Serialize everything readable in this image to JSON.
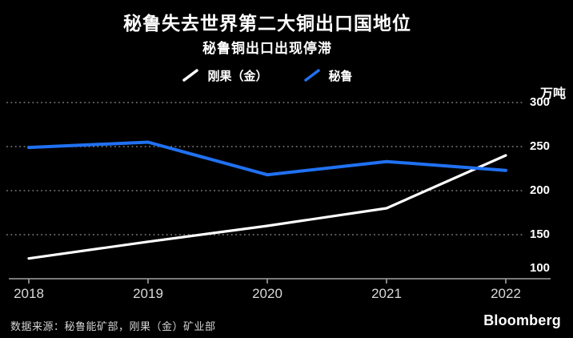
{
  "header": {
    "title": "秘鲁失去世界第二大铜出口国地位",
    "subtitle": "秘鲁铜出口出现停滞"
  },
  "chart_data": {
    "type": "line",
    "categories": [
      "2018",
      "2019",
      "2020",
      "2021",
      "2022"
    ],
    "series": [
      {
        "name": "刚果（金）",
        "color": "#ffffff",
        "values": [
          123,
          142,
          160,
          180,
          240
        ]
      },
      {
        "name": "秘鲁",
        "color": "#2071f2",
        "values": [
          249,
          255,
          218,
          233,
          223
        ]
      }
    ],
    "title": "秘鲁失去世界第二大铜出口国地位",
    "subtitle": "秘鲁铜出口出现停滞",
    "xlabel": "",
    "ylabel": "万吨",
    "yticks": [
      300,
      250,
      200,
      150,
      100
    ],
    "ylim": [
      100,
      310
    ],
    "grid": "horizontal-dotted",
    "legend_position": "top-center",
    "background": "#000000"
  },
  "footer": {
    "source": "数据来源：秘鲁能矿部，刚果（金）矿业部",
    "brand": "Bloomberg"
  },
  "colors": {
    "background": "#000000",
    "congo_line": "#ffffff",
    "peru_line": "#2071f2",
    "axis": "#a3a3a3",
    "grid": "#7d7d7d",
    "y_tick_label": "#ffffff",
    "x_tick_label": "#d9d9d9"
  }
}
